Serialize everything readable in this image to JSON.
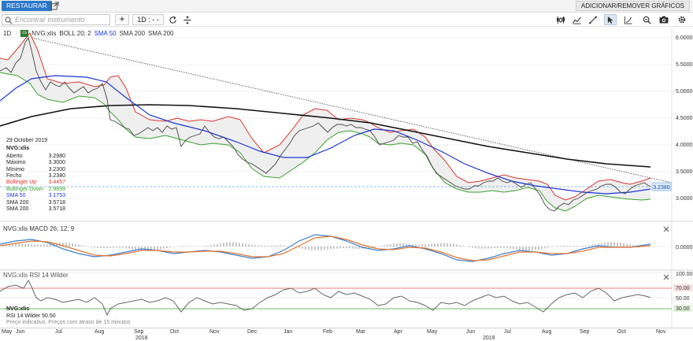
{
  "topbar": {
    "restore_label": "RESTAURAR",
    "add_remove_label": "ADICIONAR/REMOVER GRÁFICOS"
  },
  "toolbar": {
    "search_placeholder": "Encontrar instrumento",
    "add_label": "+",
    "interval_label": "1D : - -"
  },
  "main_chart": {
    "interval": "1D",
    "badge": "cs",
    "legend": [
      {
        "text": "NVG:xlis",
        "color": "#222222"
      },
      {
        "text": "BOLL 20; 2",
        "color": "#222222"
      },
      {
        "text": "SMA 50",
        "color": "#1a36d6"
      },
      {
        "text": "SMA 200",
        "color": "#222222"
      },
      {
        "text": "SMA 200",
        "color": "#222222"
      }
    ],
    "y_ticks": [
      "6.0000",
      "5.5000",
      "5.0000",
      "4.5000",
      "4.0000",
      "3.5000",
      "3.0000"
    ],
    "last_price": "3.2380"
  },
  "info_box": {
    "date": "29 October 2019",
    "symbol": "NVG:xlis",
    "rows": [
      {
        "label": "Aberto",
        "value": "3.2980",
        "color": "#222222"
      },
      {
        "label": "Máximo",
        "value": "3.3000",
        "color": "#222222"
      },
      {
        "label": "Mínimo",
        "value": "3.2300",
        "color": "#222222"
      },
      {
        "label": "Fecho",
        "value": "3.2380",
        "color": "#222222"
      },
      {
        "label": "Bollinger Up",
        "value": "3.4457",
        "color": "#d9342b"
      },
      {
        "label": "Bollinger Down",
        "value": "2.9899",
        "color": "#3aa22f"
      },
      {
        "label": "SMA 50",
        "value": "3.1753",
        "color": "#1a36d6"
      },
      {
        "label": "SMA 200",
        "value": "3.5718",
        "color": "#222222"
      },
      {
        "label": "SMA 200",
        "value": "3.5718",
        "color": "#222222"
      }
    ]
  },
  "macd_panel": {
    "title": "NVG:xlis  MACD 26; 12; 9",
    "y_tick": "0.0000"
  },
  "rsi_panel": {
    "title": "NVG:xlis  RSI 14 Wilder",
    "y_ticks": [
      "100.00",
      "70.00",
      "50.00",
      "30.00"
    ],
    "symbol": "NVG:xlis",
    "indicator": "RSI 14 Wilder",
    "value": "50.50",
    "note": "Preço indicativo. Preços com atraso de 15 minutos"
  },
  "x_axis": {
    "months": [
      "May",
      "Jun",
      "Jul",
      "Aug",
      "Sep",
      "Oct",
      "Nov",
      "Dec",
      "Jan",
      "Feb",
      "Mar",
      "Apr",
      "May",
      "Jun",
      "Jul",
      "Aug",
      "Sep",
      "Oct",
      "Nov"
    ],
    "years": [
      "2018",
      "2019"
    ]
  },
  "colors": {
    "accent": "#2a78c8",
    "boll_up": "#d9342b",
    "boll_down": "#3aa22f",
    "sma50": "#1a36d6",
    "sma200": "#111111",
    "macd_line": "#3b7fd4",
    "signal_line": "#e8742a"
  },
  "chart_data": {
    "type": "line",
    "title": "NVG:xlis",
    "ylim": [
      2.7,
      6.1
    ],
    "x": [
      "2018-05",
      "2018-06",
      "2018-07",
      "2018-08",
      "2018-09",
      "2018-10",
      "2018-11",
      "2018-12",
      "2019-01",
      "2019-02",
      "2019-03",
      "2019-04",
      "2019-05",
      "2019-06",
      "2019-07",
      "2019-08",
      "2019-09",
      "2019-10"
    ],
    "series": [
      {
        "name": "NVG:xlis",
        "values": [
          5.3,
          5.9,
          5.1,
          5.0,
          4.3,
          4.2,
          4.4,
          3.6,
          3.9,
          4.4,
          4.4,
          4.1,
          3.9,
          3.2,
          3.2,
          2.8,
          3.2,
          3.24
        ]
      },
      {
        "name": "SMA 50",
        "values": [
          4.8,
          5.1,
          5.3,
          5.1,
          4.6,
          4.3,
          4.1,
          3.9,
          3.8,
          4.1,
          4.3,
          4.2,
          4.0,
          3.6,
          3.3,
          3.1,
          3.05,
          3.18
        ]
      },
      {
        "name": "SMA 200",
        "values": [
          4.3,
          4.45,
          4.6,
          4.7,
          4.75,
          4.75,
          4.7,
          4.6,
          4.5,
          4.4,
          4.3,
          4.2,
          4.0,
          3.9,
          3.8,
          3.7,
          3.62,
          3.57
        ]
      }
    ]
  }
}
